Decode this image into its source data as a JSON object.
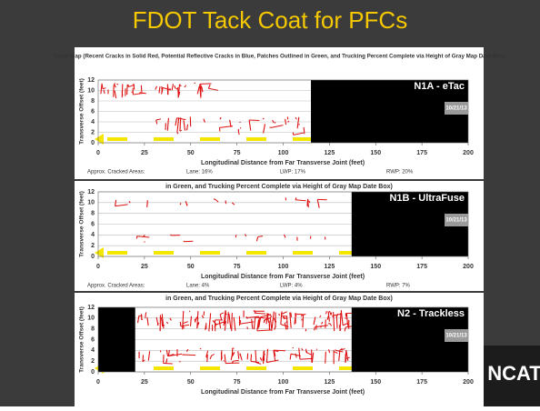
{
  "title": "FDOT Tack Coat for PFCs",
  "logo": "NCAT",
  "chart_data": [
    {
      "type": "crack-map",
      "title": "Crack Map (Recent Cracks in Solid Red, Potential Reflective Cracks in Blue, Patches Outlined in Green, and Trucking Percent Complete via Height of Gray Map Date Box)",
      "label": "N1A - eTac",
      "date": "10/21/13",
      "x_label": "Longitudinal Distance from Far Transverse Joint (feet)",
      "y_label": "Transverse Offset (feet)",
      "xlim": [
        0,
        200
      ],
      "ylim": [
        0,
        12
      ],
      "xticks": [
        0,
        25,
        50,
        75,
        100,
        125,
        150,
        175,
        200
      ],
      "yticks": [
        0,
        2,
        4,
        6,
        8,
        10,
        12
      ],
      "black_regions": [
        [
          115,
          200
        ]
      ],
      "footer": [
        "Approx. Cracked Areas:",
        "Lane: 16%",
        "LWP: 17%",
        "RWP: 20%"
      ]
    },
    {
      "type": "crack-map",
      "title": "in Green, and Trucking Percent Complete via Height of Gray Map Date Box)",
      "label": "N1B - UltraFuse",
      "date": "10/21/13",
      "x_label": "Longitudinal Distance from Far Transverse Joint (feet)",
      "y_label": "Transverse Offset (feet)",
      "xlim": [
        0,
        200
      ],
      "ylim": [
        0,
        12
      ],
      "xticks": [
        0,
        25,
        50,
        75,
        100,
        125,
        150,
        175,
        200
      ],
      "yticks": [
        0,
        2,
        4,
        6,
        8,
        10,
        12
      ],
      "black_regions": [
        [
          137,
          200
        ]
      ],
      "footer": [
        "Approx. Cracked Areas:",
        "Lane: 4%",
        "LWP: 4%",
        "RWP: 7%"
      ]
    },
    {
      "type": "crack-map",
      "title": "in Green, and Trucking Percent Complete via Height of Gray Map Date Box)",
      "label": "N2 - Trackless",
      "date": "10/21/13",
      "x_label": "Longitudinal Distance from Far Transverse Joint (feet)",
      "y_label": "Transverse Offset (feet)",
      "xlim": [
        0,
        200
      ],
      "ylim": [
        0,
        12
      ],
      "xticks": [
        0,
        25,
        50,
        75,
        100,
        125,
        150,
        175,
        200
      ],
      "yticks": [
        0,
        2,
        4,
        6,
        8,
        10,
        12
      ],
      "black_regions": [
        [
          0,
          20
        ],
        [
          137,
          200
        ]
      ]
    }
  ]
}
